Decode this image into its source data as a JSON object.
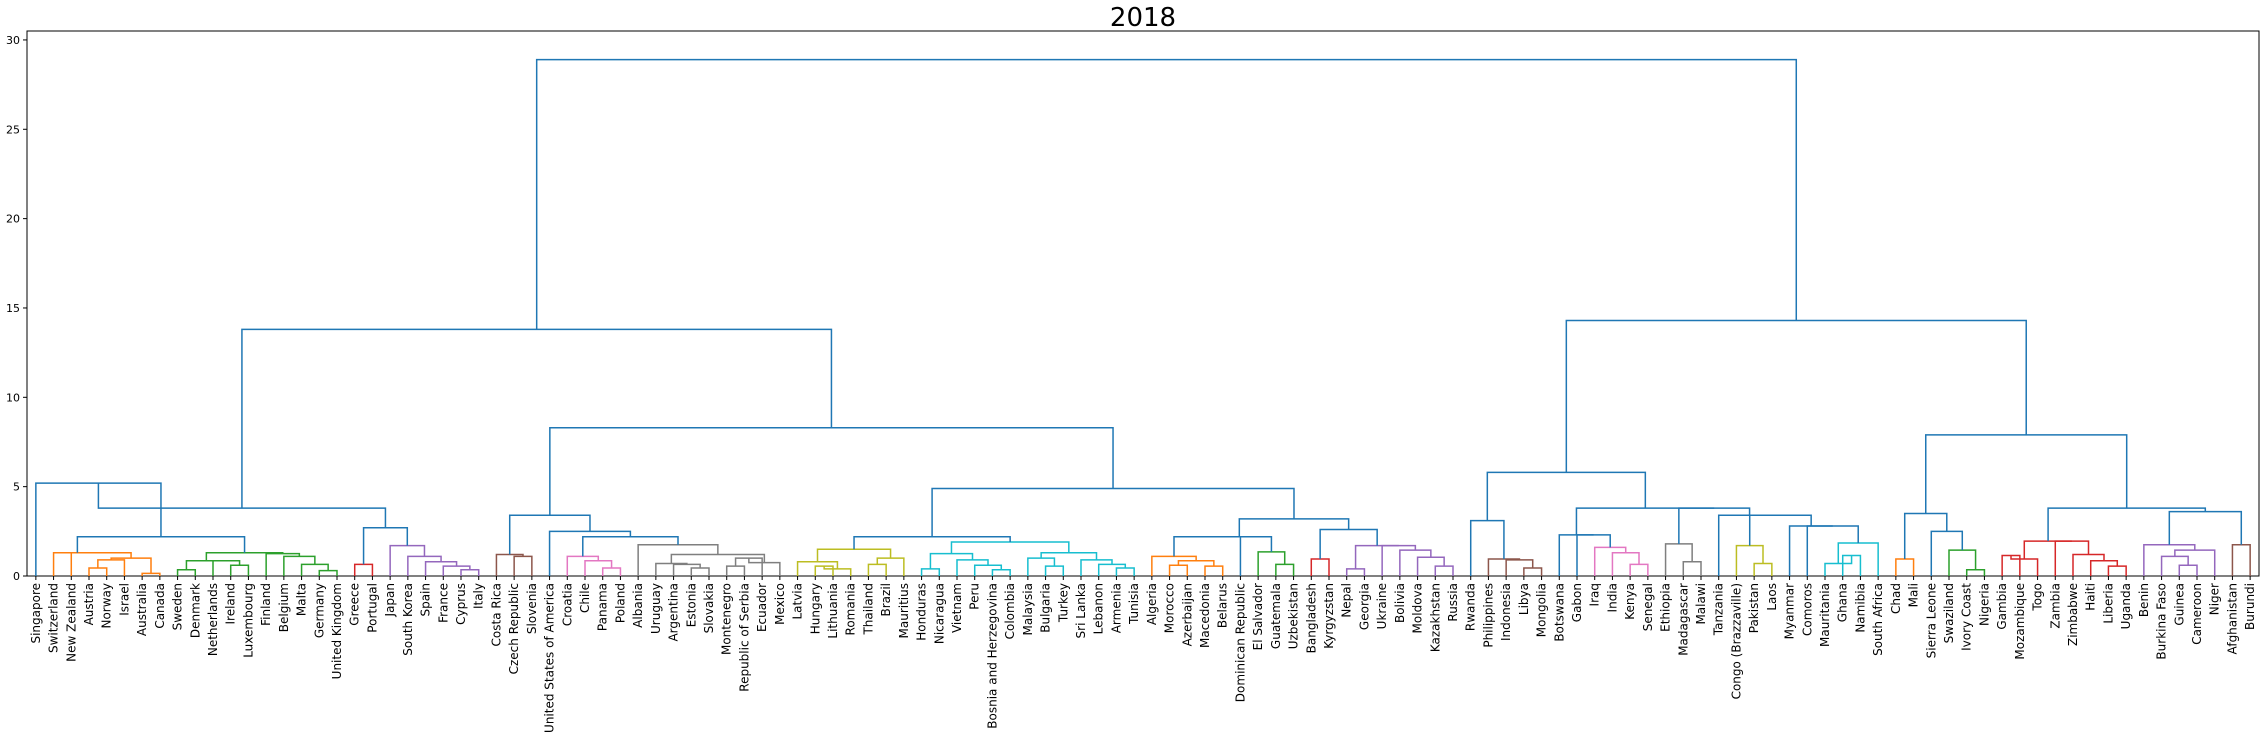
{
  "chart_data": {
    "type": "dendrogram",
    "title": "2018",
    "xlabel": "",
    "ylabel": "",
    "ylim": [
      0,
      30.5
    ],
    "yticks": [
      0,
      5,
      10,
      15,
      20,
      25,
      30
    ],
    "grid": false,
    "leaves": [
      "Singapore",
      "Switzerland",
      "New Zealand",
      "Austria",
      "Norway",
      "Israel",
      "Australia",
      "Canada",
      "Sweden",
      "Denmark",
      "Netherlands",
      "Ireland",
      "Luxembourg",
      "Finland",
      "Belgium",
      "Malta",
      "Germany",
      "United Kingdom",
      "Greece",
      "Portugal",
      "Japan",
      "South Korea",
      "Spain",
      "France",
      "Cyprus",
      "Italy",
      "Costa Rica",
      "Czech Republic",
      "Slovenia",
      "United States of America",
      "Croatia",
      "Chile",
      "Panama",
      "Poland",
      "Albania",
      "Uruguay",
      "Argentina",
      "Estonia",
      "Slovakia",
      "Montenegro",
      "Republic of Serbia",
      "Ecuador",
      "Mexico",
      "Latvia",
      "Hungary",
      "Lithuania",
      "Romania",
      "Thailand",
      "Brazil",
      "Mauritius",
      "Honduras",
      "Nicaragua",
      "Vietnam",
      "Peru",
      "Bosnia and Herzegovina",
      "Colombia",
      "Malaysia",
      "Bulgaria",
      "Turkey",
      "Sri Lanka",
      "Lebanon",
      "Armenia",
      "Tunisia",
      "Algeria",
      "Morocco",
      "Azerbaijan",
      "Macedonia",
      "Belarus",
      "Dominican Republic",
      "El Salvador",
      "Guatemala",
      "Uzbekistan",
      "Bangladesh",
      "Kyrgyzstan",
      "Nepal",
      "Georgia",
      "Ukraine",
      "Bolivia",
      "Moldova",
      "Kazakhstan",
      "Russia",
      "Rwanda",
      "Philippines",
      "Indonesia",
      "Libya",
      "Mongolia",
      "Botswana",
      "Gabon",
      "Iraq",
      "India",
      "Kenya",
      "Senegal",
      "Ethiopia",
      "Madagascar",
      "Malawi",
      "Tanzania",
      "Congo (Brazzaville)",
      "Pakistan",
      "Laos",
      "Myanmar",
      "Comoros",
      "Mauritania",
      "Ghana",
      "Namibia",
      "South Africa",
      "Chad",
      "Mali",
      "Sierra Leone",
      "Swaziland",
      "Ivory Coast",
      "Nigeria",
      "Gambia",
      "Mozambique",
      "Togo",
      "Zambia",
      "Zimbabwe",
      "Haiti",
      "Liberia",
      "Uganda",
      "Benin",
      "Burkina Faso",
      "Guinea",
      "Cameroon",
      "Niger",
      "Afghanistan",
      "Burundi"
    ],
    "linkage": [
      [
        "N1",
        "Austria",
        "Norway",
        0.45,
        "#ff7f0e"
      ],
      [
        "N2",
        "N1",
        "Israel",
        0.9,
        "#ff7f0e"
      ],
      [
        "N3",
        "Australia",
        "Canada",
        0.15,
        "#ff7f0e"
      ],
      [
        "N4",
        "N2",
        "N3",
        1.0,
        "#ff7f0e"
      ],
      [
        "N5",
        "New Zealand",
        "N4",
        1.3,
        "#ff7f0e"
      ],
      [
        "N6",
        "Switzerland",
        "N5",
        1.3,
        "#ff7f0e"
      ],
      [
        "N7",
        "Sweden",
        "Denmark",
        0.35,
        "#2ca02c"
      ],
      [
        "N8",
        "Ireland",
        "Luxembourg",
        0.6,
        "#2ca02c"
      ],
      [
        "N9",
        "Netherlands",
        "N8",
        0.85,
        "#2ca02c"
      ],
      [
        "N10",
        "N7",
        "N9",
        0.85,
        "#2ca02c"
      ],
      [
        "N11",
        "Germany",
        "United Kingdom",
        0.3,
        "#2ca02c"
      ],
      [
        "N12",
        "Malta",
        "N11",
        0.65,
        "#2ca02c"
      ],
      [
        "N13",
        "Belgium",
        "N12",
        1.1,
        "#2ca02c"
      ],
      [
        "N14",
        "Finland",
        "N13",
        1.25,
        "#2ca02c"
      ],
      [
        "N15",
        "N10",
        "N14",
        1.3,
        "#2ca02c"
      ],
      [
        "N16",
        "N6",
        "N15",
        2.2,
        "#1f77b4"
      ],
      [
        "N17",
        "Singapore",
        "N16",
        5.2,
        "#1f77b4"
      ],
      [
        "N18",
        "Greece",
        "Portugal",
        0.65,
        "#d62728"
      ],
      [
        "N19",
        "Cyprus",
        "Italy",
        0.35,
        "#9467bd"
      ],
      [
        "N20",
        "France",
        "N19",
        0.55,
        "#9467bd"
      ],
      [
        "N21",
        "Spain",
        "N20",
        0.8,
        "#9467bd"
      ],
      [
        "N22",
        "South Korea",
        "N21",
        1.1,
        "#9467bd"
      ],
      [
        "N23",
        "Japan",
        "N22",
        1.7,
        "#9467bd"
      ],
      [
        "N24",
        "N18",
        "N23",
        2.7,
        "#1f77b4"
      ],
      [
        "N25",
        "N17",
        "N24",
        3.8,
        "#1f77b4"
      ],
      [
        "N26",
        "Czech Republic",
        "Slovenia",
        1.1,
        "#8c564b"
      ],
      [
        "N27",
        "Costa Rica",
        "N26",
        1.2,
        "#8c564b"
      ],
      [
        "N28",
        "Panama",
        "Poland",
        0.45,
        "#e377c2"
      ],
      [
        "N29",
        "Chile",
        "N28",
        0.85,
        "#e377c2"
      ],
      [
        "N30",
        "Croatia",
        "N29",
        1.1,
        "#e377c2"
      ],
      [
        "N31",
        "Estonia",
        "Slovakia",
        0.45,
        "#7f7f7f"
      ],
      [
        "N32",
        "Argentina",
        "N31",
        0.65,
        "#7f7f7f"
      ],
      [
        "N33",
        "Uruguay",
        "N32",
        0.7,
        "#7f7f7f"
      ],
      [
        "N34",
        "Montenegro",
        "Republic of Serbia",
        0.55,
        "#7f7f7f"
      ],
      [
        "N35",
        "N34",
        "Ecuador",
        1.0,
        "#7f7f7f"
      ],
      [
        "N36",
        "N35",
        "Mexico",
        0.75,
        "#7f7f7f"
      ],
      [
        "N37",
        "N33",
        "N36",
        1.2,
        "#7f7f7f"
      ],
      [
        "N38",
        "Albania",
        "N37",
        1.75,
        "#7f7f7f"
      ],
      [
        "N39",
        "N30",
        "N38",
        2.2,
        "#1f77b4"
      ],
      [
        "N40",
        "United States of America",
        "N39",
        2.5,
        "#1f77b4"
      ],
      [
        "N41",
        "N27",
        "N40",
        3.4,
        "#1f77b4"
      ],
      [
        "N42",
        "Hungary",
        "Lithuania",
        0.55,
        "#bcbd22"
      ],
      [
        "N43",
        "N42",
        "Romania",
        0.4,
        "#bcbd22"
      ],
      [
        "N44",
        "Latvia",
        "N43",
        0.8,
        "#bcbd22"
      ],
      [
        "N45",
        "Thailand",
        "Brazil",
        0.65,
        "#bcbd22"
      ],
      [
        "N46",
        "N45",
        "Mauritius",
        1.0,
        "#bcbd22"
      ],
      [
        "N47",
        "N44",
        "N46",
        1.5,
        "#bcbd22"
      ],
      [
        "N48",
        "Honduras",
        "Nicaragua",
        0.4,
        "#17becf"
      ],
      [
        "N49",
        "Bosnia and Herzegovina",
        "Colombia",
        0.35,
        "#17becf"
      ],
      [
        "N50",
        "Peru",
        "N49",
        0.6,
        "#17becf"
      ],
      [
        "N51",
        "Vietnam",
        "N50",
        0.9,
        "#17becf"
      ],
      [
        "N52",
        "N48",
        "N51",
        1.25,
        "#17becf"
      ],
      [
        "N53",
        "Bulgaria",
        "Turkey",
        0.55,
        "#17becf"
      ],
      [
        "N54",
        "Malaysia",
        "N53",
        1.0,
        "#17becf"
      ],
      [
        "N55",
        "Armenia",
        "Tunisia",
        0.45,
        "#17becf"
      ],
      [
        "N56",
        "Lebanon",
        "N55",
        0.65,
        "#17becf"
      ],
      [
        "N57",
        "Sri Lanka",
        "N56",
        0.9,
        "#17becf"
      ],
      [
        "N58",
        "N54",
        "N57",
        1.3,
        "#17becf"
      ],
      [
        "N59",
        "N52",
        "N58",
        1.9,
        "#17becf"
      ],
      [
        "N60",
        "N47",
        "N59",
        2.2,
        "#1f77b4"
      ],
      [
        "N61",
        "Morocco",
        "Azerbaijan",
        0.6,
        "#ff7f0e"
      ],
      [
        "N62",
        "Macedonia",
        "Belarus",
        0.55,
        "#ff7f0e"
      ],
      [
        "N63",
        "N61",
        "N62",
        0.85,
        "#ff7f0e"
      ],
      [
        "N64",
        "Algeria",
        "N63",
        1.1,
        "#ff7f0e"
      ],
      [
        "N65",
        "Dominican Republic",
        "N64",
        2.2,
        "#1f77b4"
      ],
      [
        "N66",
        "Guatemala",
        "Uzbekistan",
        0.65,
        "#2ca02c"
      ],
      [
        "N67",
        "El Salvador",
        "N66",
        1.35,
        "#2ca02c"
      ],
      [
        "N68",
        "N65",
        "N67",
        2.2,
        "#1f77b4"
      ],
      [
        "N69",
        "Bangladesh",
        "Kyrgyzstan",
        0.95,
        "#d62728"
      ],
      [
        "N70",
        "Nepal",
        "Georgia",
        0.4,
        "#9467bd"
      ],
      [
        "N71",
        "Kazakhstan",
        "Russia",
        0.55,
        "#9467bd"
      ],
      [
        "N72",
        "Moldova",
        "N71",
        1.05,
        "#9467bd"
      ],
      [
        "N73",
        "Bolivia",
        "N72",
        1.45,
        "#9467bd"
      ],
      [
        "N74",
        "Ukraine",
        "N73",
        1.7,
        "#9467bd"
      ],
      [
        "N75",
        "N70",
        "N74",
        1.7,
        "#9467bd"
      ],
      [
        "N76",
        "N69",
        "N75",
        2.6,
        "#1f77b4"
      ],
      [
        "N77",
        "N68",
        "N76",
        3.2,
        "#1f77b4"
      ],
      [
        "N78",
        "N60",
        "N77",
        4.9,
        "#1f77b4"
      ],
      [
        "N79",
        "N41",
        "N78",
        8.3,
        "#1f77b4"
      ],
      [
        "N80",
        "N25",
        "N79",
        13.8,
        "#1f77b4"
      ],
      [
        "N81",
        "Libya",
        "Mongolia",
        0.45,
        "#8c564b"
      ],
      [
        "N82",
        "Indonesia",
        "N81",
        0.9,
        "#8c564b"
      ],
      [
        "N83",
        "Philippines",
        "N82",
        0.95,
        "#8c564b"
      ],
      [
        "N84",
        "Rwanda",
        "N83",
        3.1,
        "#1f77b4"
      ],
      [
        "N85",
        "Kenya",
        "Senegal",
        0.65,
        "#e377c2"
      ],
      [
        "N86",
        "India",
        "N85",
        1.3,
        "#e377c2"
      ],
      [
        "N87",
        "Iraq",
        "N86",
        1.6,
        "#e377c2"
      ],
      [
        "N88",
        "Gabon",
        "N87",
        2.3,
        "#1f77b4"
      ],
      [
        "N89",
        "Botswana",
        "N88",
        2.3,
        "#1f77b4"
      ],
      [
        "N90",
        "Madagascar",
        "Malawi",
        0.8,
        "#7f7f7f"
      ],
      [
        "N91",
        "Ethiopia",
        "N90",
        1.8,
        "#7f7f7f"
      ],
      [
        "N92",
        "Pakistan",
        "Laos",
        0.7,
        "#bcbd22"
      ],
      [
        "N93",
        "Congo (Brazzaville)",
        "N92",
        1.7,
        "#bcbd22"
      ],
      [
        "N94",
        "Ghana",
        "Namibia",
        1.15,
        "#17becf"
      ],
      [
        "N95",
        "Mauritania",
        "N94",
        0.7,
        "#17becf"
      ],
      [
        "N96",
        "N95",
        "South Africa",
        1.85,
        "#17becf"
      ],
      [
        "N97",
        "Comoros",
        "N96",
        2.8,
        "#1f77b4"
      ],
      [
        "N98",
        "Myanmar",
        "N97",
        2.8,
        "#1f77b4"
      ],
      [
        "N99",
        "N93",
        "N98",
        3.4,
        "#1f77b4"
      ],
      [
        "N100",
        "Tanzania",
        "N99",
        3.4,
        "#1f77b4"
      ],
      [
        "N101",
        "N91",
        "N100",
        3.8,
        "#1f77b4"
      ],
      [
        "N102",
        "N89",
        "N101",
        3.8,
        "#1f77b4"
      ],
      [
        "N103",
        "N84",
        "N102",
        5.8,
        "#1f77b4"
      ],
      [
        "N104",
        "Chad",
        "Mali",
        0.95,
        "#ff7f0e"
      ],
      [
        "N105",
        "Ivory Coast",
        "Nigeria",
        0.35,
        "#2ca02c"
      ],
      [
        "N106",
        "Swaziland",
        "N105",
        1.45,
        "#2ca02c"
      ],
      [
        "N107",
        "Sierra Leone",
        "N106",
        2.5,
        "#1f77b4"
      ],
      [
        "N108",
        "N104",
        "N107",
        3.5,
        "#1f77b4"
      ],
      [
        "N109",
        "Gambia",
        "Mozambique",
        1.15,
        "#d62728"
      ],
      [
        "N110",
        "N109",
        "Togo",
        0.95,
        "#d62728"
      ],
      [
        "N111",
        "Liberia",
        "Uganda",
        0.55,
        "#d62728"
      ],
      [
        "N112",
        "Haiti",
        "N111",
        0.85,
        "#d62728"
      ],
      [
        "N113",
        "Zimbabwe",
        "N112",
        1.2,
        "#d62728"
      ],
      [
        "N114",
        "Zambia",
        "N113",
        1.95,
        "#d62728"
      ],
      [
        "N115",
        "N110",
        "N114",
        1.95,
        "#d62728"
      ],
      [
        "N116",
        "Guinea",
        "Cameroon",
        0.6,
        "#9467bd"
      ],
      [
        "N117",
        "Burkina Faso",
        "N116",
        1.1,
        "#9467bd"
      ],
      [
        "N118",
        "N117",
        "Niger",
        1.45,
        "#9467bd"
      ],
      [
        "N119",
        "Benin",
        "N118",
        1.75,
        "#9467bd"
      ],
      [
        "N120",
        "Afghanistan",
        "Burundi",
        1.75,
        "#8c564b"
      ],
      [
        "N121",
        "N119",
        "N120",
        3.6,
        "#1f77b4"
      ],
      [
        "N122",
        "N115",
        "N121",
        3.8,
        "#1f77b4"
      ],
      [
        "N123",
        "N108",
        "N122",
        7.9,
        "#1f77b4"
      ],
      [
        "N124",
        "N103",
        "N123",
        14.3,
        "#1f77b4"
      ],
      [
        "N125",
        "N80",
        "N124",
        28.9,
        "#1f77b4"
      ]
    ]
  }
}
